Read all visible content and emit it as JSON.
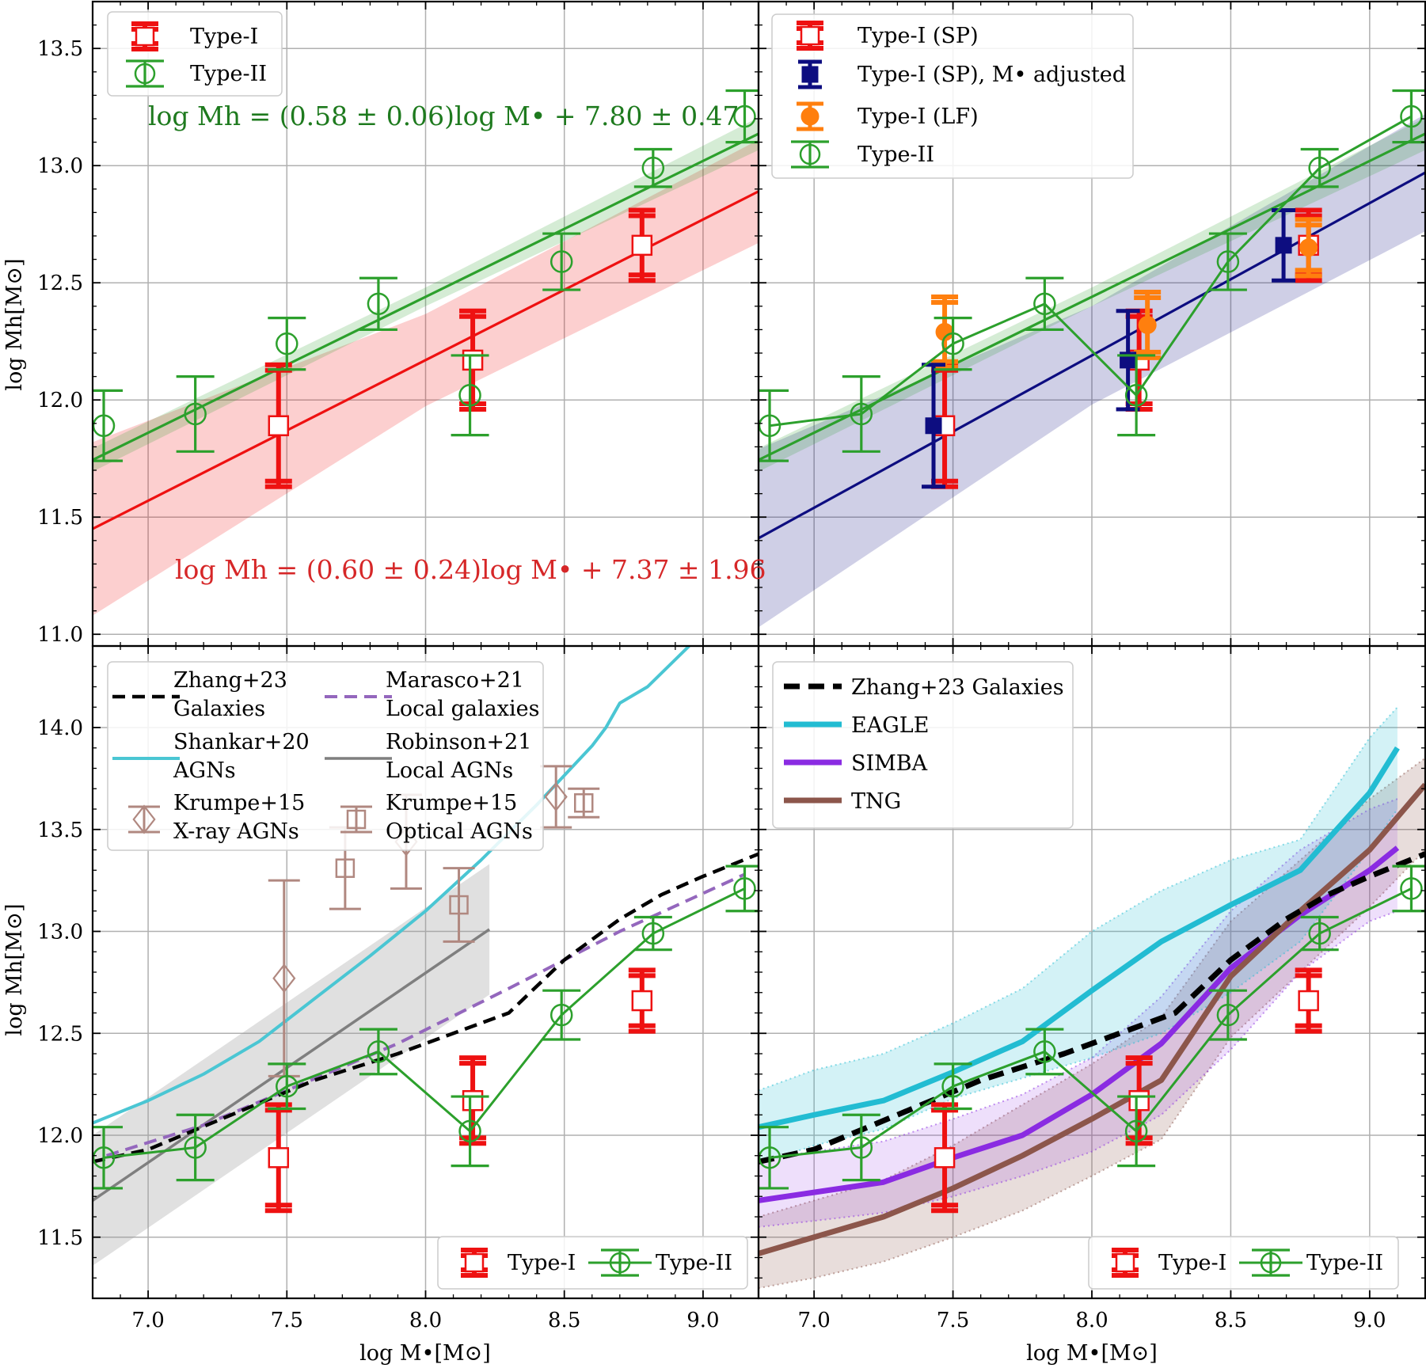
{
  "colors": {
    "type1": "#ee1111",
    "type2": "#2ca02c",
    "adjusted": "#0d0d80",
    "lf": "#ff7f0e",
    "zhang": "#000000",
    "marasco": "#9467bd",
    "shankar": "#4ac6d3",
    "robinson": "#7f7f7f",
    "krumpe": "#b08880",
    "eagle": "#22bcd2",
    "simba": "#8a2be2",
    "tng": "#8c564b"
  },
  "axes": {
    "xlabel": "log M•[M⊙]",
    "ylabel": "log Mh[M⊙]",
    "xlim": [
      6.8,
      9.2
    ],
    "top_ylim": [
      10.95,
      13.7
    ],
    "bottom_ylim": [
      11.2,
      14.4
    ],
    "x_ticks": [
      "7.0",
      "7.5",
      "8.0",
      "8.5",
      "9.0"
    ],
    "top_y_ticks": [
      "11.0",
      "11.5",
      "12.0",
      "12.5",
      "13.0",
      "13.5"
    ],
    "bottom_y_ticks": [
      "11.5",
      "12.0",
      "12.5",
      "13.0",
      "13.5",
      "14.0"
    ],
    "grid": true
  },
  "legends": {
    "tl": [
      "Type-I",
      "Type-II"
    ],
    "tr": [
      "Type-I (SP)",
      "Type-I (SP), M• adjusted",
      "Type-I (LF)",
      "Type-II"
    ],
    "bl": [
      [
        "Zhang+23",
        "Galaxies"
      ],
      [
        "Marasco+21",
        "Local galaxies"
      ],
      [
        "Shankar+20",
        "AGNs"
      ],
      [
        "Robinson+21",
        "Local AGNs"
      ],
      [
        "Krumpe+15",
        "X-ray AGNs"
      ],
      [
        "Krumpe+15",
        "Optical AGNs"
      ]
    ],
    "br": [
      "Zhang+23 Galaxies",
      "EAGLE",
      "SIMBA",
      "TNG"
    ],
    "bottom_small": [
      "Type-I",
      "Type-II"
    ]
  },
  "equations": {
    "type2": "log Mh = (0.58 ± 0.06)log M• + 7.80 ± 0.47",
    "type1": "log Mh = (0.60 ± 0.24)log M• + 7.37 ± 1.96"
  },
  "chart_data": [
    {
      "panel": "top-left",
      "type": "scatter",
      "series": [
        {
          "name": "Type-I",
          "marker": "open-square",
          "x": [
            7.47,
            8.17,
            8.78
          ],
          "y": [
            11.89,
            12.17,
            12.66
          ],
          "yerr": [
            0.26,
            0.21,
            0.15
          ]
        },
        {
          "name": "Type-II",
          "marker": "open-circle",
          "x": [
            6.84,
            7.17,
            7.5,
            7.83,
            8.16,
            8.49,
            8.82,
            9.15
          ],
          "y": [
            11.89,
            11.94,
            12.24,
            12.41,
            12.02,
            12.59,
            12.99,
            13.21
          ],
          "yerr": [
            0.15,
            0.16,
            0.11,
            0.11,
            0.17,
            0.12,
            0.08,
            0.11
          ]
        }
      ],
      "fits": [
        {
          "name": "Type-II fit",
          "slope": 0.58,
          "intercept": 7.8,
          "band": [
            0.05,
            0.07
          ]
        },
        {
          "name": "Type-I fit",
          "slope": 0.6,
          "intercept": 7.37,
          "band": [
            0.37,
            0.22
          ]
        }
      ]
    },
    {
      "panel": "top-right",
      "type": "scatter",
      "series": [
        {
          "name": "Type-I (SP)",
          "marker": "open-square",
          "x": [
            7.47,
            8.17,
            8.78
          ],
          "y": [
            11.89,
            12.17,
            12.66
          ],
          "yerr": [
            0.26,
            0.21,
            0.15
          ]
        },
        {
          "name": "Type-I (SP), M• adjusted",
          "marker": "filled-square",
          "x": [
            7.43,
            8.13,
            8.69
          ],
          "y": [
            11.89,
            12.17,
            12.66
          ],
          "yerr": [
            0.26,
            0.21,
            0.15
          ]
        },
        {
          "name": "Type-I (LF)",
          "marker": "filled-circle",
          "x": [
            7.47,
            8.2,
            8.78
          ],
          "y": [
            12.29,
            12.32,
            12.65
          ],
          "yerr": [
            0.15,
            0.14,
            0.12
          ]
        },
        {
          "name": "Type-II",
          "marker": "open-circle",
          "x": [
            6.84,
            7.17,
            7.5,
            7.83,
            8.16,
            8.49,
            8.82,
            9.15
          ],
          "y": [
            11.89,
            11.94,
            12.24,
            12.41,
            12.02,
            12.59,
            12.99,
            13.21
          ],
          "yerr": [
            0.15,
            0.16,
            0.11,
            0.11,
            0.17,
            0.12,
            0.08,
            0.11
          ]
        }
      ],
      "fits": [
        {
          "name": "Type-II fit",
          "slope": 0.58,
          "intercept": 7.8,
          "band": [
            0.05,
            0.07
          ]
        },
        {
          "name": "adjusted fit",
          "slope": 0.65,
          "intercept": 6.99,
          "band": [
            0.38,
            0.25
          ]
        }
      ]
    },
    {
      "panel": "bottom-left",
      "type": "line",
      "series": [
        {
          "name": "Zhang+23 Galaxies",
          "style": "dashed",
          "x": [
            6.8,
            7.0,
            7.3,
            7.6,
            7.9,
            8.1,
            8.3,
            8.5,
            8.7,
            8.85,
            9.0,
            9.2
          ],
          "y": [
            11.87,
            11.93,
            12.1,
            12.27,
            12.4,
            12.5,
            12.6,
            12.86,
            13.06,
            13.18,
            13.27,
            13.38
          ]
        },
        {
          "name": "Marasco+21 Local galaxies",
          "style": "dashed",
          "x": [
            6.85,
            7.2,
            7.5,
            7.9,
            8.3,
            8.7,
            9.15
          ],
          "y": [
            11.9,
            12.05,
            12.22,
            12.45,
            12.72,
            13.0,
            13.28
          ]
        },
        {
          "name": "Shankar+20 AGNs",
          "style": "solid",
          "x": [
            6.8,
            7.0,
            7.2,
            7.4,
            7.6,
            7.8,
            8.0,
            8.2,
            8.4,
            8.6,
            8.65,
            8.7,
            8.8,
            8.95
          ],
          "y": [
            12.06,
            12.17,
            12.3,
            12.46,
            12.67,
            12.88,
            13.1,
            13.35,
            13.62,
            13.91,
            14.0,
            14.12,
            14.2,
            14.4
          ]
        },
        {
          "name": "Robinson+21 Local AGNs",
          "style": "solid",
          "x": [
            6.8,
            8.23
          ],
          "y": [
            11.68,
            13.01
          ],
          "band": 0.32
        },
        {
          "name": "Krumpe+15 X-ray AGNs",
          "marker": "open-diamond",
          "x": [
            7.49,
            7.93,
            8.47
          ],
          "y": [
            12.77,
            13.44,
            13.66
          ],
          "yerr": [
            0.48,
            0.23,
            0.15
          ]
        },
        {
          "name": "Krumpe+15 Optical AGNs",
          "marker": "open-square",
          "x": [
            7.71,
            8.12,
            8.57
          ],
          "y": [
            13.31,
            13.13,
            13.63
          ],
          "yerr": [
            0.2,
            0.18,
            0.07
          ]
        },
        {
          "name": "Type-I",
          "marker": "open-square",
          "x": [
            7.47,
            8.17,
            8.78
          ],
          "y": [
            11.89,
            12.17,
            12.66
          ],
          "yerr": [
            0.26,
            0.21,
            0.15
          ]
        },
        {
          "name": "Type-II",
          "marker": "open-circle",
          "x": [
            6.84,
            7.17,
            7.5,
            7.83,
            8.16,
            8.49,
            8.82,
            9.15
          ],
          "y": [
            11.89,
            11.94,
            12.24,
            12.41,
            12.02,
            12.59,
            12.99,
            13.21
          ],
          "yerr": [
            0.15,
            0.16,
            0.11,
            0.11,
            0.17,
            0.12,
            0.08,
            0.11
          ]
        }
      ]
    },
    {
      "panel": "bottom-right",
      "type": "line",
      "series": [
        {
          "name": "Zhang+23 Galaxies",
          "style": "dashed",
          "x": [
            6.8,
            7.0,
            7.3,
            7.6,
            7.9,
            8.1,
            8.3,
            8.5,
            8.7,
            8.85,
            9.0,
            9.2
          ],
          "y": [
            11.87,
            11.93,
            12.1,
            12.27,
            12.4,
            12.5,
            12.6,
            12.86,
            13.06,
            13.18,
            13.27,
            13.38
          ]
        },
        {
          "name": "EAGLE",
          "x": [
            6.8,
            7.0,
            7.25,
            7.5,
            7.75,
            8.0,
            8.25,
            8.5,
            8.75,
            9.0,
            9.1
          ],
          "y": [
            12.04,
            12.1,
            12.17,
            12.31,
            12.46,
            12.71,
            12.95,
            13.13,
            13.3,
            13.68,
            13.9
          ],
          "lo": [
            11.86,
            11.95,
            12.03,
            12.18,
            12.28,
            12.38,
            12.5,
            12.7,
            12.95,
            13.4,
            13.6
          ],
          "hi": [
            12.22,
            12.32,
            12.4,
            12.55,
            12.72,
            13.0,
            13.2,
            13.35,
            13.45,
            13.95,
            14.1
          ]
        },
        {
          "name": "SIMBA",
          "x": [
            6.8,
            7.0,
            7.25,
            7.5,
            7.75,
            8.0,
            8.25,
            8.5,
            8.75,
            9.0,
            9.1
          ],
          "y": [
            11.68,
            11.72,
            11.77,
            11.89,
            12.0,
            12.2,
            12.45,
            12.82,
            13.08,
            13.3,
            13.41
          ],
          "lo": [
            11.55,
            11.58,
            11.62,
            11.7,
            11.8,
            11.92,
            12.1,
            12.42,
            12.8,
            13.05,
            13.1
          ],
          "hi": [
            11.88,
            11.92,
            11.97,
            12.08,
            12.2,
            12.38,
            12.68,
            13.1,
            13.4,
            13.6,
            13.65
          ]
        },
        {
          "name": "TNG",
          "x": [
            6.8,
            7.0,
            7.25,
            7.5,
            7.75,
            8.0,
            8.25,
            8.5,
            8.75,
            9.0,
            9.2
          ],
          "y": [
            11.42,
            11.5,
            11.6,
            11.74,
            11.9,
            12.08,
            12.27,
            12.78,
            13.1,
            13.4,
            13.72
          ],
          "lo": [
            11.25,
            11.3,
            11.38,
            11.5,
            11.63,
            11.8,
            11.98,
            12.48,
            12.8,
            13.12,
            13.4
          ],
          "hi": [
            11.6,
            11.68,
            11.78,
            11.95,
            12.15,
            12.35,
            12.58,
            13.05,
            13.35,
            13.65,
            13.85
          ]
        },
        {
          "name": "Type-I",
          "marker": "open-square",
          "x": [
            7.47,
            8.17,
            8.78
          ],
          "y": [
            11.89,
            12.17,
            12.66
          ],
          "yerr": [
            0.26,
            0.21,
            0.15
          ]
        },
        {
          "name": "Type-II",
          "marker": "open-circle",
          "x": [
            6.84,
            7.17,
            7.5,
            7.83,
            8.16,
            8.49,
            8.82,
            9.15
          ],
          "y": [
            11.89,
            11.94,
            12.24,
            12.41,
            12.02,
            12.59,
            12.99,
            13.21
          ],
          "yerr": [
            0.15,
            0.16,
            0.11,
            0.11,
            0.17,
            0.12,
            0.08,
            0.11
          ]
        }
      ]
    }
  ]
}
